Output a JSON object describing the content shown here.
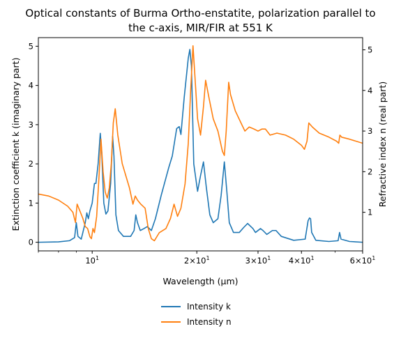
{
  "chart_data": {
    "type": "line",
    "title_line1": "Optical constants of Burma Ortho-enstatite, polarization parallel to",
    "title_line2": "the c-axis, MIR/FIR at 551 K",
    "xlabel": "Wavelength (μm)",
    "ylabel_left": "Extinction coefficient k (imaginary part)",
    "ylabel_right": "Refractive index n (real part)",
    "x_scale": "log",
    "xlim": [
      7.0,
      60.0
    ],
    "ylim_left": [
      -0.22,
      5.22
    ],
    "ylim_right": [
      0.05,
      5.3
    ],
    "x_ticks": [
      {
        "value": 10,
        "base": "10",
        "exp": "1"
      },
      {
        "value": 20,
        "base": "2×10",
        "exp": "1"
      },
      {
        "value": 30,
        "base": "3×10",
        "exp": "1"
      },
      {
        "value": 40,
        "base": "4×10",
        "exp": "1"
      },
      {
        "value": 60,
        "base": "6×10",
        "exp": "1"
      }
    ],
    "y_ticks_left": [
      0,
      1,
      2,
      3,
      4,
      5
    ],
    "y_ticks_right": [
      1,
      2,
      3,
      4,
      5
    ],
    "legend_placement": "below-center",
    "series": [
      {
        "name": "Intensity k",
        "axis": "left",
        "color": "#1f77b4",
        "points": [
          [
            7.0,
            0.0
          ],
          [
            8.0,
            0.01
          ],
          [
            8.6,
            0.04
          ],
          [
            8.9,
            0.12
          ],
          [
            9.0,
            0.5
          ],
          [
            9.1,
            0.15
          ],
          [
            9.3,
            0.08
          ],
          [
            9.55,
            0.5
          ],
          [
            9.65,
            0.75
          ],
          [
            9.75,
            0.6
          ],
          [
            9.85,
            0.8
          ],
          [
            10.0,
            1.0
          ],
          [
            10.15,
            1.5
          ],
          [
            10.25,
            1.5
          ],
          [
            10.4,
            2.0
          ],
          [
            10.55,
            2.78
          ],
          [
            10.65,
            2.3
          ],
          [
            10.8,
            1.0
          ],
          [
            10.95,
            0.72
          ],
          [
            11.1,
            0.8
          ],
          [
            11.3,
            1.5
          ],
          [
            11.45,
            2.7
          ],
          [
            11.55,
            2.2
          ],
          [
            11.7,
            0.7
          ],
          [
            11.9,
            0.3
          ],
          [
            12.3,
            0.15
          ],
          [
            12.9,
            0.15
          ],
          [
            13.2,
            0.3
          ],
          [
            13.35,
            0.7
          ],
          [
            13.5,
            0.5
          ],
          [
            13.75,
            0.3
          ],
          [
            14.1,
            0.35
          ],
          [
            14.4,
            0.4
          ],
          [
            14.8,
            0.3
          ],
          [
            15.2,
            0.6
          ],
          [
            15.8,
            1.2
          ],
          [
            16.6,
            1.9
          ],
          [
            17.0,
            2.2
          ],
          [
            17.5,
            2.9
          ],
          [
            17.8,
            2.95
          ],
          [
            18.0,
            2.75
          ],
          [
            18.4,
            3.7
          ],
          [
            18.9,
            4.7
          ],
          [
            19.1,
            4.92
          ],
          [
            19.3,
            4.5
          ],
          [
            19.6,
            2.0
          ],
          [
            20.1,
            1.3
          ],
          [
            20.5,
            1.7
          ],
          [
            20.9,
            2.05
          ],
          [
            21.3,
            1.4
          ],
          [
            21.8,
            0.7
          ],
          [
            22.3,
            0.5
          ],
          [
            23.0,
            0.6
          ],
          [
            23.5,
            1.2
          ],
          [
            24.0,
            2.05
          ],
          [
            24.4,
            1.3
          ],
          [
            24.8,
            0.5
          ],
          [
            25.5,
            0.25
          ],
          [
            26.5,
            0.25
          ],
          [
            27.3,
            0.38
          ],
          [
            28.0,
            0.48
          ],
          [
            29.0,
            0.35
          ],
          [
            29.5,
            0.25
          ],
          [
            30.5,
            0.35
          ],
          [
            31.0,
            0.3
          ],
          [
            31.8,
            0.2
          ],
          [
            33.0,
            0.3
          ],
          [
            33.8,
            0.3
          ],
          [
            35.0,
            0.15
          ],
          [
            38.0,
            0.05
          ],
          [
            41.0,
            0.08
          ],
          [
            41.8,
            0.55
          ],
          [
            42.2,
            0.62
          ],
          [
            42.5,
            0.6
          ],
          [
            42.8,
            0.25
          ],
          [
            44.0,
            0.05
          ],
          [
            48.0,
            0.02
          ],
          [
            51.0,
            0.04
          ],
          [
            51.5,
            0.25
          ],
          [
            52.0,
            0.08
          ],
          [
            55.0,
            0.02
          ],
          [
            60.0,
            0.0
          ]
        ]
      },
      {
        "name": "Intensity n",
        "axis": "right",
        "color": "#ff7f0e",
        "points": [
          [
            7.0,
            1.45
          ],
          [
            7.5,
            1.4
          ],
          [
            8.0,
            1.3
          ],
          [
            8.5,
            1.15
          ],
          [
            8.8,
            1.0
          ],
          [
            8.95,
            0.75
          ],
          [
            9.05,
            1.2
          ],
          [
            9.2,
            1.05
          ],
          [
            9.4,
            0.85
          ],
          [
            9.55,
            0.65
          ],
          [
            9.7,
            0.6
          ],
          [
            9.85,
            0.4
          ],
          [
            9.95,
            0.35
          ],
          [
            10.05,
            0.6
          ],
          [
            10.15,
            0.5
          ],
          [
            10.3,
            0.9
          ],
          [
            10.45,
            1.8
          ],
          [
            10.6,
            2.8
          ],
          [
            10.75,
            2.0
          ],
          [
            10.9,
            1.5
          ],
          [
            11.05,
            1.35
          ],
          [
            11.2,
            1.6
          ],
          [
            11.35,
            2.2
          ],
          [
            11.5,
            3.2
          ],
          [
            11.65,
            3.55
          ],
          [
            11.85,
            2.9
          ],
          [
            12.2,
            2.2
          ],
          [
            12.8,
            1.6
          ],
          [
            13.1,
            1.2
          ],
          [
            13.3,
            1.4
          ],
          [
            13.5,
            1.3
          ],
          [
            13.8,
            1.2
          ],
          [
            14.2,
            1.1
          ],
          [
            14.5,
            0.6
          ],
          [
            14.8,
            0.35
          ],
          [
            15.1,
            0.3
          ],
          [
            15.6,
            0.5
          ],
          [
            16.3,
            0.6
          ],
          [
            16.8,
            0.85
          ],
          [
            17.2,
            1.2
          ],
          [
            17.6,
            0.9
          ],
          [
            18.0,
            1.1
          ],
          [
            18.5,
            1.7
          ],
          [
            18.9,
            2.7
          ],
          [
            19.2,
            4.0
          ],
          [
            19.5,
            5.1
          ],
          [
            19.8,
            4.2
          ],
          [
            20.1,
            3.3
          ],
          [
            20.5,
            2.9
          ],
          [
            20.9,
            3.6
          ],
          [
            21.2,
            4.25
          ],
          [
            21.7,
            3.8
          ],
          [
            22.3,
            3.3
          ],
          [
            23.0,
            3.0
          ],
          [
            23.7,
            2.5
          ],
          [
            24.0,
            2.4
          ],
          [
            24.3,
            3.0
          ],
          [
            24.7,
            4.2
          ],
          [
            25.0,
            3.9
          ],
          [
            25.8,
            3.5
          ],
          [
            26.8,
            3.2
          ],
          [
            27.5,
            3.0
          ],
          [
            28.3,
            3.1
          ],
          [
            29.2,
            3.05
          ],
          [
            30.0,
            3.0
          ],
          [
            30.8,
            3.05
          ],
          [
            31.5,
            3.05
          ],
          [
            32.5,
            2.9
          ],
          [
            34.0,
            2.95
          ],
          [
            36.0,
            2.9
          ],
          [
            38.0,
            2.8
          ],
          [
            40.0,
            2.65
          ],
          [
            40.8,
            2.55
          ],
          [
            41.5,
            2.75
          ],
          [
            42.0,
            3.2
          ],
          [
            43.0,
            3.1
          ],
          [
            45.0,
            2.95
          ],
          [
            48.0,
            2.85
          ],
          [
            50.5,
            2.75
          ],
          [
            51.2,
            2.7
          ],
          [
            51.6,
            2.9
          ],
          [
            52.2,
            2.85
          ],
          [
            55.0,
            2.8
          ],
          [
            60.0,
            2.7
          ]
        ]
      }
    ]
  }
}
